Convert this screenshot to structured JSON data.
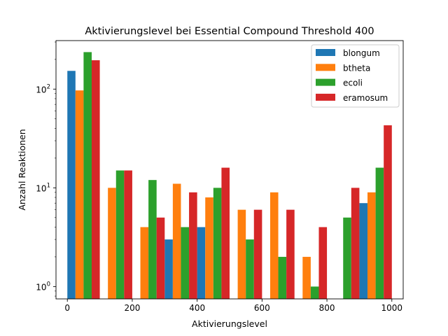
{
  "chart_data": {
    "type": "bar",
    "title": "Aktivierungslevel bei Essential Compound Threshold 400",
    "xlabel": "Aktivierungslevel",
    "ylabel": "Anzahl Reaktionen",
    "yscale": "log",
    "xlim": [
      -35,
      1035
    ],
    "ylim": [
      0.75,
      310
    ],
    "legend_position": "top-right",
    "grid": false,
    "bin_centers": [
      50,
      150,
      250,
      350,
      450,
      550,
      650,
      750,
      850,
      950
    ],
    "x_ticks": [
      {
        "value": 0,
        "label": "0"
      },
      {
        "value": 200,
        "label": "200"
      },
      {
        "value": 400,
        "label": "400"
      },
      {
        "value": 600,
        "label": "600"
      },
      {
        "value": 800,
        "label": "800"
      },
      {
        "value": 1000,
        "label": "1000"
      }
    ],
    "y_ticks": [
      {
        "value": 1,
        "base": "10",
        "exp": "0"
      },
      {
        "value": 10,
        "base": "10",
        "exp": "1"
      },
      {
        "value": 100,
        "base": "10",
        "exp": "2"
      }
    ],
    "series": [
      {
        "name": "blongum",
        "color": "#1f77b4",
        "values": [
          153,
          0,
          0,
          3,
          4,
          0,
          0,
          0,
          0,
          7
        ]
      },
      {
        "name": "btheta",
        "color": "#ff7f0e",
        "values": [
          97,
          10,
          4,
          11,
          8,
          6,
          9,
          2,
          0,
          9
        ]
      },
      {
        "name": "ecoli",
        "color": "#2ca02c",
        "values": [
          237,
          15,
          12,
          4,
          10,
          3,
          2,
          1,
          5,
          16
        ]
      },
      {
        "name": "eramosum",
        "color": "#d62728",
        "values": [
          196,
          15,
          5,
          9,
          16,
          6,
          6,
          4,
          10,
          43
        ]
      }
    ]
  }
}
